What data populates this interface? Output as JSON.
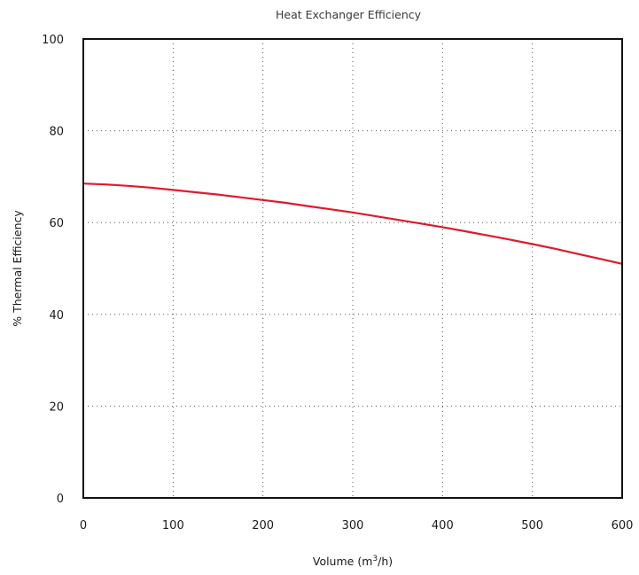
{
  "chart_data": {
    "type": "line",
    "title": "Heat Exchanger Efficiency",
    "xlabel_main": "Volume (m",
    "xlabel_sup": "3",
    "xlabel_tail": "/h)",
    "ylabel": "% Thermal Efficiency",
    "xlim": [
      0,
      600
    ],
    "ylim": [
      0,
      100
    ],
    "x_ticks": [
      "0",
      "100",
      "200",
      "300",
      "400",
      "500",
      "600"
    ],
    "y_ticks": [
      "0",
      "20",
      "40",
      "60",
      "80",
      "100"
    ],
    "grid": true,
    "series": [
      {
        "color": "#e0192b",
        "x": [
          0,
          25,
          50,
          75,
          100,
          125,
          150,
          175,
          200,
          225,
          250,
          275,
          300,
          325,
          350,
          375,
          400,
          425,
          450,
          475,
          500,
          525,
          550,
          575,
          600
        ],
        "y": [
          68.5,
          68.3,
          68.0,
          67.6,
          67.1,
          66.6,
          66.1,
          65.5,
          64.9,
          64.3,
          63.6,
          62.9,
          62.2,
          61.4,
          60.6,
          59.8,
          59.0,
          58.1,
          57.2,
          56.3,
          55.3,
          54.3,
          53.2,
          52.1,
          51.0
        ]
      }
    ]
  }
}
